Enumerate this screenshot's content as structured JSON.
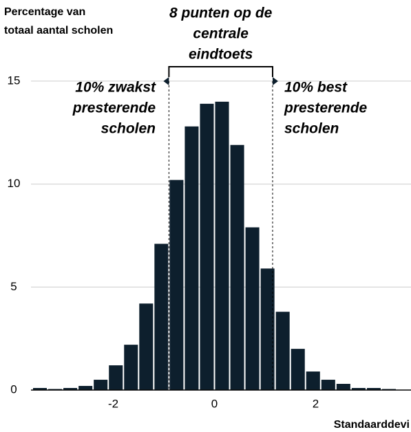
{
  "chart_data": {
    "type": "histogram",
    "ylabel": [
      "Percentage van",
      "totaal aantal scholen"
    ],
    "xlabel": "Standaarddevi",
    "bins": [
      -3.6,
      -3.3,
      -3.0,
      -2.7,
      -2.4,
      -2.1,
      -1.8,
      -1.5,
      -1.2,
      -0.9,
      -0.6,
      -0.3,
      0,
      0.3,
      0.6,
      0.9,
      1.2,
      1.5,
      1.8,
      2.1,
      2.4,
      2.7,
      3.0,
      3.3,
      3.6
    ],
    "values": [
      0.1,
      0.05,
      0.1,
      0.2,
      0.5,
      1.2,
      2.2,
      4.2,
      7.1,
      10.2,
      12.8,
      13.9,
      14.0,
      11.9,
      7.9,
      5.9,
      3.8,
      2.0,
      0.9,
      0.5,
      0.3,
      0.1,
      0.1,
      0.05
    ],
    "color": "#0d1f2d",
    "xlim": [
      -3.6,
      3.6
    ],
    "xticks": [
      {
        "value": -2,
        "label": "-2"
      },
      0,
      2
    ],
    "ylim": [
      0,
      16.5
    ],
    "yticks": [
      0,
      5,
      10,
      15
    ],
    "grid": true,
    "reference_lines_x": [
      -0.9,
      1.15
    ],
    "annotations": [
      {
        "lines": [
          "8 punten op de",
          "centrale",
          "eindtoets"
        ]
      },
      {
        "lines": [
          "10% zwakst",
          "presterende",
          "scholen"
        ]
      },
      {
        "lines": [
          "10% best",
          "presterende",
          "scholen"
        ]
      }
    ]
  }
}
